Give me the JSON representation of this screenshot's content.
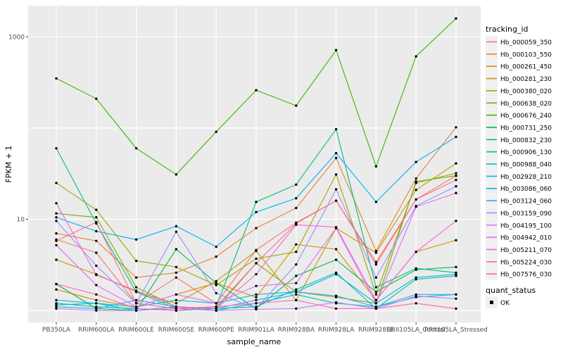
{
  "chart_data": {
    "type": "line",
    "title": "",
    "xlabel": "sample_name",
    "ylabel": "FPKM + 1",
    "y_scale": "log10",
    "ylim": [
      1,
      1600
    ],
    "y_ticks": [
      {
        "label": "1000",
        "value": 1000
      },
      {
        "label": "10",
        "value": 10
      }
    ],
    "y_major_gridlines": [
      1,
      10,
      100,
      1000
    ],
    "panel_background": "#EBEBEB",
    "gridline_color": "#FFFFFF",
    "point_color": "#000000",
    "legend_position": "right",
    "x_categories": [
      "PB350LA",
      "RRIM600LA",
      "RRIM600LE",
      "RRIM600SE",
      "RRIM600PE",
      "RRIM901LA",
      "RRIM928BA",
      "RRIM928LA",
      "RRIM928LE",
      "RRII105LA_Control",
      "RRII105LA_Stressed"
    ],
    "series": [
      {
        "tracking_id": "Hb_000059_350",
        "color": "#F8766D",
        "values": [
          6.0,
          4.3,
          1.2,
          2.3,
          1.2,
          4.6,
          9.2,
          16,
          3.4,
          16.5,
          30
        ]
      },
      {
        "tracking_id": "Hb_000103_550",
        "color": "#EA8331",
        "values": [
          7.0,
          5.8,
          2.3,
          2.6,
          3.9,
          8.0,
          13.3,
          47,
          4.5,
          28,
          102
        ]
      },
      {
        "tracking_id": "Hb_000261_450",
        "color": "#D89000",
        "values": [
          1.7,
          1.3,
          1.1,
          1.5,
          2.0,
          1.4,
          5.3,
          4.7,
          1.3,
          4.4,
          5.9
        ]
      },
      {
        "tracking_id": "Hb_000281_230",
        "color": "#C09B00",
        "values": [
          3.6,
          2.5,
          1.6,
          1.2,
          2.1,
          4.5,
          1.3,
          8.0,
          4.3,
          21,
          41
        ]
      },
      {
        "tracking_id": "Hb_000380_020",
        "color": "#A3A500",
        "values": [
          25,
          12.7,
          3.5,
          3.0,
          1.9,
          3.7,
          4.4,
          31,
          1.5,
          25,
          32
        ]
      },
      {
        "tracking_id": "Hb_000638_020",
        "color": "#7CAE00",
        "values": [
          11.6,
          10.5,
          1.8,
          1.1,
          1.05,
          3.3,
          1.6,
          1.4,
          1.2,
          26,
          30
        ]
      },
      {
        "tracking_id": "Hb_000676_240",
        "color": "#39B600",
        "values": [
          350,
          210,
          60,
          31,
          91,
          260,
          176,
          715,
          38,
          610,
          1590
        ]
      },
      {
        "tracking_id": "Hb_000731_250",
        "color": "#00BB4E",
        "values": [
          1.95,
          1.05,
          1.0,
          4.7,
          2.0,
          1.05,
          2.4,
          3.6,
          1.6,
          2.8,
          3.0
        ]
      },
      {
        "tracking_id": "Hb_000832_230",
        "color": "#00BF7D",
        "values": [
          60,
          9.0,
          1.6,
          1.05,
          1.1,
          15.5,
          24,
          97,
          1.8,
          2.9,
          2.6
        ]
      },
      {
        "tracking_id": "Hb_000906_130",
        "color": "#00C1A3",
        "values": [
          1.2,
          1.1,
          1.05,
          1.0,
          1.05,
          1.1,
          1.7,
          2.6,
          1.05,
          2.2,
          2.4
        ]
      },
      {
        "tracking_id": "Hb_000988_040",
        "color": "#00BFC4",
        "values": [
          1.15,
          1.2,
          1.0,
          1.1,
          1.0,
          1.2,
          1.5,
          1.2,
          1.1,
          1.4,
          1.5
        ]
      },
      {
        "tracking_id": "Hb_002928_210",
        "color": "#00BAE0",
        "values": [
          1.3,
          1.2,
          1.1,
          1.3,
          1.2,
          1.5,
          1.6,
          2.5,
          1.2,
          2.3,
          2.5
        ]
      },
      {
        "tracking_id": "Hb_003086_060",
        "color": "#00B0F6",
        "values": [
          10.5,
          7.4,
          6.0,
          8.4,
          5.0,
          12,
          17,
          53,
          15.5,
          42.5,
          80
        ]
      },
      {
        "tracking_id": "Hb_003124_060",
        "color": "#35A2FF",
        "values": [
          1.1,
          1.05,
          1.3,
          1.1,
          1.05,
          1.3,
          1.6,
          1.45,
          1.1,
          1.5,
          1.5
        ]
      },
      {
        "tracking_id": "Hb_003159_090",
        "color": "#9590FF",
        "values": [
          9.6,
          3.1,
          1.2,
          7.3,
          1.55,
          1.05,
          3.2,
          21.3,
          2.3,
          14,
          23
        ]
      },
      {
        "tracking_id": "Hb_004195_100",
        "color": "#C77CFF",
        "values": [
          1.05,
          1.0,
          1.0,
          1.05,
          1.0,
          1.03,
          1.05,
          1.23,
          1.05,
          1.44,
          1.35
        ]
      },
      {
        "tracking_id": "Hb_004942_010",
        "color": "#E76BF3",
        "values": [
          5.2,
          1.9,
          1.1,
          1.5,
          1.2,
          1.86,
          2.0,
          8.0,
          1.2,
          13.7,
          19.4
        ]
      },
      {
        "tracking_id": "Hb_005211_070",
        "color": "#FA62DB",
        "values": [
          15,
          2.45,
          1.65,
          1.1,
          1.05,
          2.5,
          8.7,
          8.2,
          1.3,
          4.4,
          9.6
        ]
      },
      {
        "tracking_id": "Hb_005224_030",
        "color": "#FF62BC",
        "values": [
          1.95,
          1.5,
          1.05,
          1.0,
          1.1,
          1.2,
          1.3,
          1.05,
          1.05,
          1.2,
          1.05
        ]
      },
      {
        "tracking_id": "Hb_007576_030",
        "color": "#FF6A98",
        "values": [
          5.8,
          9.3,
          1.2,
          1.05,
          1.1,
          3.3,
          9.0,
          16,
          3.2,
          16.5,
          27
        ]
      }
    ],
    "legends": [
      {
        "title": "tracking_id"
      },
      {
        "title": "quant_status",
        "entries": [
          {
            "label": "OK",
            "marker": "filled-square"
          }
        ]
      }
    ]
  }
}
